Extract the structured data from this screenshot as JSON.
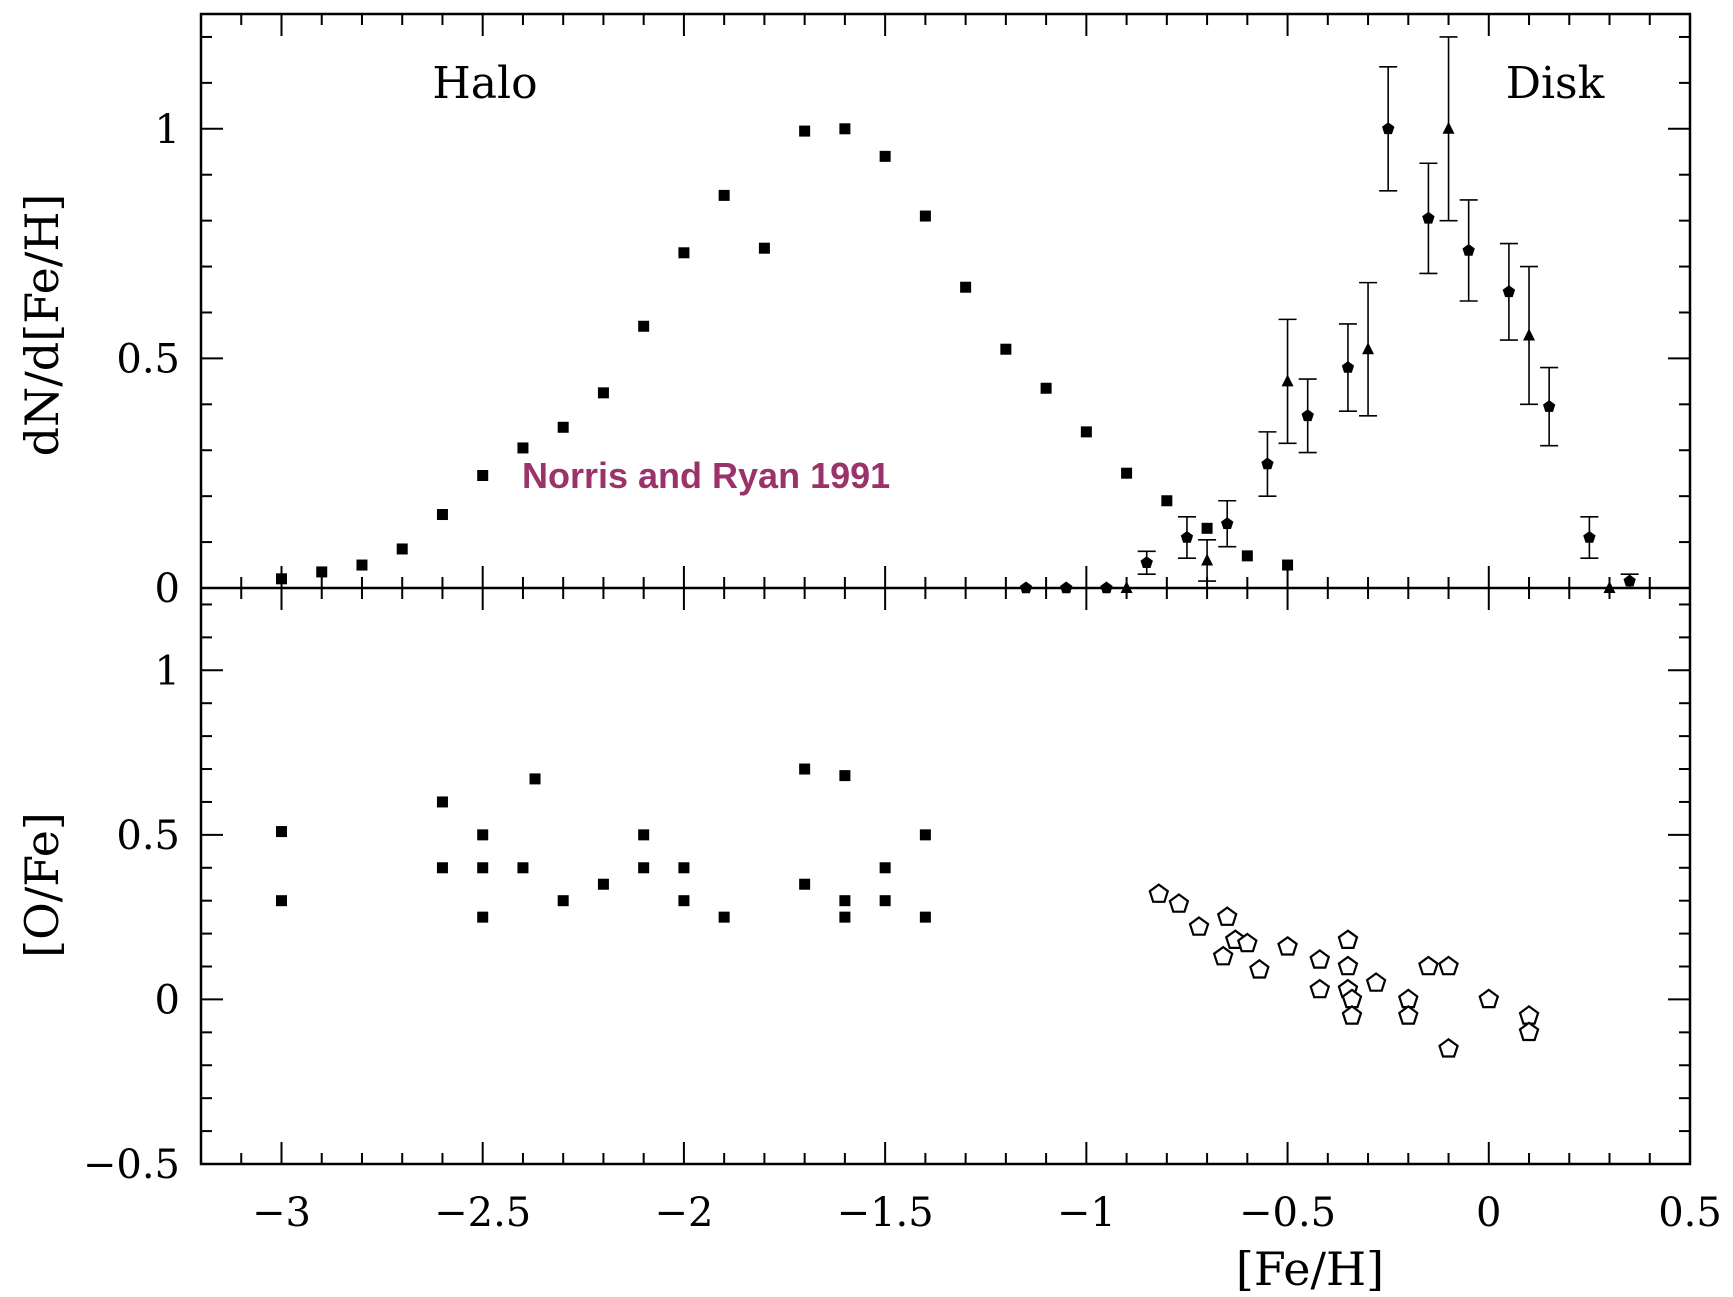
{
  "chart_data": [
    {
      "type": "scatter",
      "panel": "top",
      "ylabel": "dN/d[Fe/H]",
      "xlim": [
        -3.2,
        0.5
      ],
      "ylim": [
        0,
        1.25
      ],
      "yticks": [
        "0",
        "0.5",
        "1"
      ],
      "annotations": [
        "Halo",
        "Disk",
        "Norris  and Ryan  1991"
      ],
      "series": [
        {
          "marker": "square",
          "points": [
            [
              -3.0,
              0.02
            ],
            [
              -2.9,
              0.035
            ],
            [
              -2.8,
              0.05
            ],
            [
              -2.7,
              0.085
            ],
            [
              -2.6,
              0.16
            ],
            [
              -2.5,
              0.245
            ],
            [
              -2.4,
              0.305
            ],
            [
              -2.3,
              0.35
            ],
            [
              -2.2,
              0.425
            ],
            [
              -2.1,
              0.57
            ],
            [
              -2.0,
              0.73
            ],
            [
              -1.9,
              0.855
            ],
            [
              -1.8,
              0.74
            ],
            [
              -1.7,
              0.995
            ],
            [
              -1.6,
              1.0
            ],
            [
              -1.5,
              0.94
            ],
            [
              -1.4,
              0.81
            ],
            [
              -1.3,
              0.655
            ],
            [
              -1.2,
              0.52
            ],
            [
              -1.1,
              0.435
            ],
            [
              -1.0,
              0.34
            ],
            [
              -0.9,
              0.25
            ],
            [
              -0.8,
              0.19
            ],
            [
              -0.7,
              0.13
            ],
            [
              -0.6,
              0.07
            ],
            [
              -0.5,
              0.05
            ]
          ]
        },
        {
          "marker": "pentagon-filled",
          "points": [
            [
              -1.15,
              0.0,
              0
            ],
            [
              -1.05,
              0.0,
              0
            ],
            [
              -0.95,
              0.0,
              0
            ],
            [
              -0.85,
              0.055,
              0.025
            ],
            [
              -0.75,
              0.11,
              0.045
            ],
            [
              -0.65,
              0.14,
              0.05
            ],
            [
              -0.55,
              0.27,
              0.07
            ],
            [
              -0.45,
              0.375,
              0.08
            ],
            [
              -0.35,
              0.48,
              0.095
            ],
            [
              -0.25,
              1.0,
              0.135
            ],
            [
              -0.15,
              0.805,
              0.12
            ],
            [
              -0.05,
              0.735,
              0.11
            ],
            [
              0.05,
              0.645,
              0.105
            ],
            [
              0.15,
              0.395,
              0.085
            ],
            [
              0.25,
              0.11,
              0.045
            ],
            [
              0.35,
              0.015,
              0.015
            ]
          ]
        },
        {
          "marker": "triangle-filled",
          "points": [
            [
              -0.9,
              0.0,
              0
            ],
            [
              -0.7,
              0.06,
              0.045
            ],
            [
              -0.5,
              0.45,
              0.135
            ],
            [
              -0.3,
              0.52,
              0.145
            ],
            [
              -0.1,
              1.0,
              0.2
            ],
            [
              0.1,
              0.55,
              0.15
            ],
            [
              0.3,
              0.0,
              0
            ]
          ]
        }
      ]
    },
    {
      "type": "scatter",
      "panel": "bottom",
      "xlabel": "[Fe/H]",
      "ylabel": "[O/Fe]",
      "xlim": [
        -3.2,
        0.5
      ],
      "ylim": [
        -0.5,
        1.25
      ],
      "xticks": [
        "−3",
        "−2.5",
        "−2",
        "−1.5",
        "−1",
        "−0.5",
        "0",
        "0.5"
      ],
      "yticks": [
        "−0.5",
        "0",
        "0.5",
        "1"
      ],
      "series": [
        {
          "marker": "square",
          "points": [
            [
              -3.0,
              0.51
            ],
            [
              -3.0,
              0.3
            ],
            [
              -2.6,
              0.6
            ],
            [
              -2.6,
              0.4
            ],
            [
              -2.5,
              0.5
            ],
            [
              -2.5,
              0.4
            ],
            [
              -2.5,
              0.25
            ],
            [
              -2.4,
              0.4
            ],
            [
              -2.37,
              0.67
            ],
            [
              -2.3,
              0.3
            ],
            [
              -2.2,
              0.35
            ],
            [
              -2.1,
              0.5
            ],
            [
              -2.1,
              0.4
            ],
            [
              -2.0,
              0.4
            ],
            [
              -2.0,
              0.3
            ],
            [
              -1.9,
              0.25
            ],
            [
              -1.7,
              0.7
            ],
            [
              -1.7,
              0.35
            ],
            [
              -1.6,
              0.68
            ],
            [
              -1.6,
              0.3
            ],
            [
              -1.6,
              0.25
            ],
            [
              -1.5,
              0.4
            ],
            [
              -1.5,
              0.3
            ],
            [
              -1.4,
              0.5
            ],
            [
              -1.4,
              0.25
            ]
          ]
        },
        {
          "marker": "pentagon-open",
          "points": [
            [
              -0.82,
              0.32
            ],
            [
              -0.77,
              0.29
            ],
            [
              -0.72,
              0.22
            ],
            [
              -0.65,
              0.25
            ],
            [
              -0.63,
              0.18
            ],
            [
              -0.66,
              0.13
            ],
            [
              -0.6,
              0.17
            ],
            [
              -0.57,
              0.09
            ],
            [
              -0.5,
              0.16
            ],
            [
              -0.42,
              0.12
            ],
            [
              -0.42,
              0.03
            ],
            [
              -0.35,
              0.18
            ],
            [
              -0.35,
              0.1
            ],
            [
              -0.35,
              0.03
            ],
            [
              -0.34,
              0.0
            ],
            [
              -0.34,
              -0.05
            ],
            [
              -0.28,
              0.05
            ],
            [
              -0.2,
              0.0
            ],
            [
              -0.2,
              -0.05
            ],
            [
              -0.15,
              0.1
            ],
            [
              -0.1,
              0.1
            ],
            [
              -0.1,
              -0.15
            ],
            [
              0.0,
              0.0
            ],
            [
              0.1,
              -0.05
            ],
            [
              0.1,
              -0.1
            ]
          ]
        }
      ]
    }
  ]
}
